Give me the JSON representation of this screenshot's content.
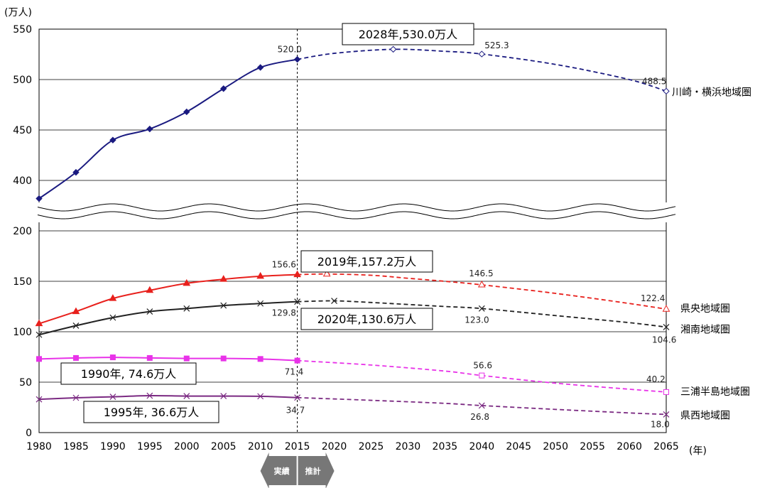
{
  "chart_data": {
    "type": "line",
    "y_unit": "(万人)",
    "x_unit": "(年)",
    "x_ticks": [
      1980,
      1985,
      1990,
      1995,
      2000,
      2005,
      2010,
      2015,
      2020,
      2025,
      2030,
      2035,
      2040,
      2045,
      2050,
      2055,
      2060,
      2065
    ],
    "y_ticks_upper": [
      400,
      450,
      500,
      550
    ],
    "y_ticks_lower": [
      0,
      50,
      100,
      150,
      200
    ],
    "axis_break": "200–400",
    "divider_year": 2015,
    "divider_labels": {
      "left": "実績",
      "right": "推計"
    },
    "series": [
      {
        "name": "川崎・横浜地域圏",
        "color": "#1a1a80",
        "marker": "diamond",
        "actual": [
          [
            1980,
            382
          ],
          [
            1985,
            408
          ],
          [
            1990,
            440
          ],
          [
            1995,
            451
          ],
          [
            2000,
            468
          ],
          [
            2005,
            491
          ],
          [
            2010,
            512
          ],
          [
            2015,
            520.0
          ]
        ],
        "projection": [
          [
            2015,
            520.0
          ],
          [
            2020,
            526
          ],
          [
            2028,
            530.0
          ],
          [
            2035,
            528
          ],
          [
            2040,
            525.3
          ],
          [
            2050,
            515
          ],
          [
            2060,
            500
          ],
          [
            2065,
            488.5
          ]
        ],
        "labels": [
          {
            "year": 2015,
            "text": "520.0"
          },
          {
            "year": 2040,
            "text": "525.3"
          },
          {
            "year": 2065,
            "text": "488.5"
          }
        ]
      },
      {
        "name": "県央地域圏",
        "color": "#e8201c",
        "marker": "triangle",
        "actual": [
          [
            1980,
            108
          ],
          [
            1985,
            120
          ],
          [
            1990,
            133
          ],
          [
            1995,
            141
          ],
          [
            2000,
            148
          ],
          [
            2005,
            152
          ],
          [
            2010,
            155
          ],
          [
            2015,
            156.6
          ]
        ],
        "projection": [
          [
            2015,
            156.6
          ],
          [
            2019,
            157.2
          ],
          [
            2025,
            156
          ],
          [
            2030,
            153
          ],
          [
            2035,
            150
          ],
          [
            2040,
            146.5
          ],
          [
            2050,
            138
          ],
          [
            2060,
            128
          ],
          [
            2065,
            122.4
          ]
        ],
        "labels": [
          {
            "year": 2015,
            "text": "156.6"
          },
          {
            "year": 2040,
            "text": "146.5"
          },
          {
            "year": 2065,
            "text": "122.4"
          }
        ]
      },
      {
        "name": "湘南地域圏",
        "color": "#222222",
        "marker": "x",
        "actual": [
          [
            1980,
            97
          ],
          [
            1985,
            106
          ],
          [
            1990,
            114
          ],
          [
            1995,
            120
          ],
          [
            2000,
            123
          ],
          [
            2005,
            126
          ],
          [
            2010,
            128
          ],
          [
            2015,
            129.8
          ]
        ],
        "projection": [
          [
            2015,
            129.8
          ],
          [
            2020,
            130.6
          ],
          [
            2025,
            129
          ],
          [
            2030,
            127
          ],
          [
            2035,
            125
          ],
          [
            2040,
            123.0
          ],
          [
            2050,
            116
          ],
          [
            2060,
            109
          ],
          [
            2065,
            104.6
          ]
        ],
        "labels": [
          {
            "year": 2015,
            "text": "129.8"
          },
          {
            "year": 2040,
            "text": "123.0"
          },
          {
            "year": 2065,
            "text": "104.6"
          }
        ]
      },
      {
        "name": "三浦半島地域圏",
        "color": "#e832e8",
        "marker": "square",
        "actual": [
          [
            1980,
            73
          ],
          [
            1985,
            74
          ],
          [
            1990,
            74.6
          ],
          [
            1995,
            74
          ],
          [
            2000,
            73.5
          ],
          [
            2005,
            73.5
          ],
          [
            2010,
            73
          ],
          [
            2015,
            71.4
          ]
        ],
        "projection": [
          [
            2015,
            71.4
          ],
          [
            2025,
            67
          ],
          [
            2035,
            61
          ],
          [
            2040,
            56.6
          ],
          [
            2050,
            49
          ],
          [
            2060,
            43
          ],
          [
            2065,
            40.2
          ]
        ],
        "labels": [
          {
            "year": 2015,
            "text": "71.4"
          },
          {
            "year": 2040,
            "text": "56.6"
          },
          {
            "year": 2065,
            "text": "40.2"
          }
        ]
      },
      {
        "name": "県西地域圏",
        "color": "#7b2a82",
        "marker": "x",
        "actual": [
          [
            1980,
            33
          ],
          [
            1985,
            34.5
          ],
          [
            1990,
            35.5
          ],
          [
            1995,
            36.6
          ],
          [
            2000,
            36.2
          ],
          [
            2005,
            36.2
          ],
          [
            2010,
            36
          ],
          [
            2015,
            34.7
          ]
        ],
        "projection": [
          [
            2015,
            34.7
          ],
          [
            2025,
            32
          ],
          [
            2035,
            29
          ],
          [
            2040,
            26.8
          ],
          [
            2050,
            23
          ],
          [
            2060,
            19.5
          ],
          [
            2065,
            18.0
          ]
        ],
        "labels": [
          {
            "year": 2015,
            "text": "34.7"
          },
          {
            "year": 2040,
            "text": "26.8"
          },
          {
            "year": 2065,
            "text": "18.0"
          }
        ]
      }
    ],
    "callouts": [
      {
        "text": "2028年,530.0万人",
        "anchor_year": 2028,
        "anchor_value": 530.0
      },
      {
        "text": "2019年,157.2万人",
        "anchor_year": 2019,
        "anchor_value": 157.2
      },
      {
        "text": "2020年,130.6万人",
        "anchor_year": 2020,
        "anchor_value": 130.6
      },
      {
        "text": "1990年, 74.6万人",
        "anchor_year": 1990,
        "anchor_value": 74.6
      },
      {
        "text": "1995年, 36.6万人",
        "anchor_year": 1995,
        "anchor_value": 36.6
      }
    ],
    "grid": true
  }
}
